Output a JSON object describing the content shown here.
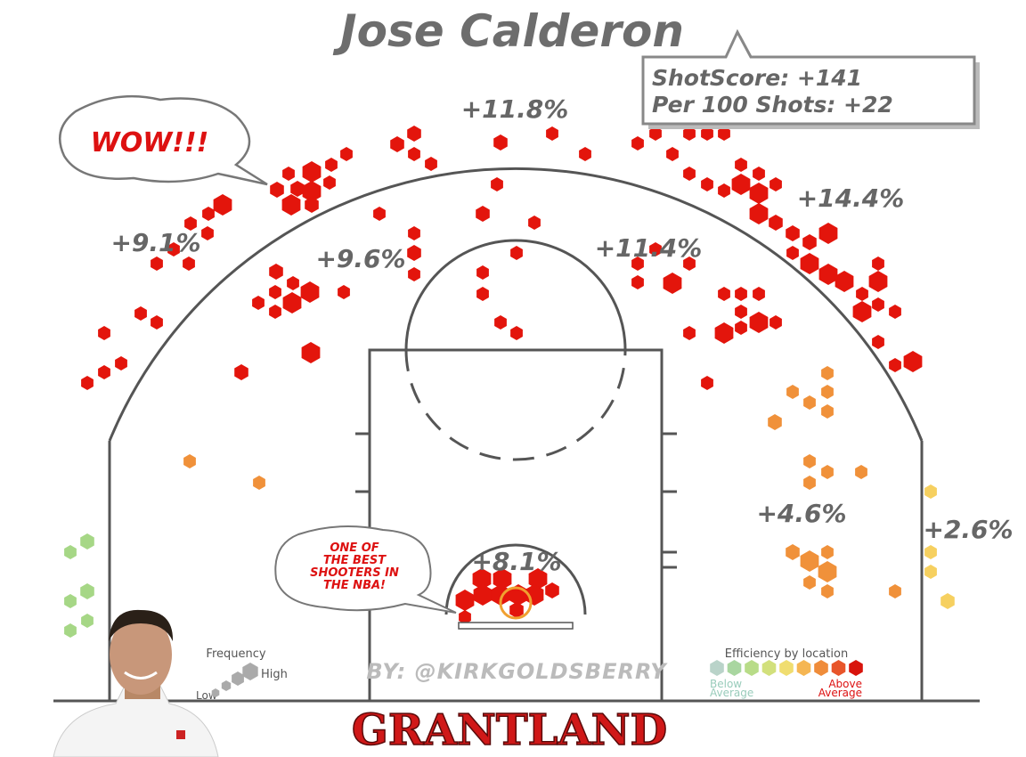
{
  "header": {
    "title": "Jose Calderon"
  },
  "stats": {
    "shot_score": "ShotScore: +141",
    "per_100": "Per 100 Shots: +22"
  },
  "callouts": {
    "wow": "WOW!!!",
    "best": [
      "ONE OF",
      "THE BEST",
      "SHOOTERS IN",
      "THE NBA!"
    ]
  },
  "zones": [
    "+11.8%",
    "+9.1%",
    "+9.6%",
    "+11.4%",
    "+14.4%",
    "+4.6%",
    "+2.6%",
    "+8.1%"
  ],
  "credit": "BY: @KIRKGOLDSBERRY",
  "brand": "GRANTLAND",
  "legend": {
    "frequency": {
      "title": "Frequency",
      "high": "High",
      "low": "Low"
    },
    "efficiency": {
      "title": "Efficiency by location",
      "below": [
        "Below",
        "Average"
      ],
      "above": [
        "Above",
        "Average"
      ]
    }
  }
}
